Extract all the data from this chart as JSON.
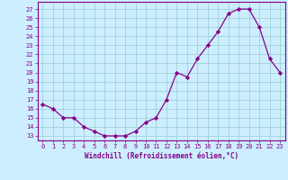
{
  "x": [
    0,
    1,
    2,
    3,
    4,
    5,
    6,
    7,
    8,
    9,
    10,
    11,
    12,
    13,
    14,
    15,
    16,
    17,
    18,
    19,
    20,
    21,
    22,
    23
  ],
  "y": [
    16.5,
    16.0,
    15.0,
    15.0,
    14.0,
    13.5,
    13.0,
    13.0,
    13.0,
    13.5,
    14.5,
    15.0,
    17.0,
    20.0,
    19.5,
    21.5,
    23.0,
    24.5,
    26.5,
    27.0,
    27.0,
    25.0,
    21.5,
    20.0
  ],
  "line_color": "#880088",
  "marker": "D",
  "marker_size": 2.2,
  "bg_color": "#cceeff",
  "grid_color": "#99cccc",
  "xlabel": "Windchill (Refroidissement éolien,°C)",
  "xlabel_color": "#880088",
  "ylabel_ticks": [
    13,
    14,
    15,
    16,
    17,
    18,
    19,
    20,
    21,
    22,
    23,
    24,
    25,
    26,
    27
  ],
  "ylim": [
    12.5,
    27.8
  ],
  "xlim": [
    -0.5,
    23.5
  ],
  "xtick_labels": [
    "0",
    "1",
    "2",
    "3",
    "4",
    "5",
    "6",
    "7",
    "8",
    "9",
    "10",
    "11",
    "12",
    "13",
    "14",
    "15",
    "16",
    "17",
    "18",
    "19",
    "20",
    "21",
    "22",
    "23"
  ],
  "tick_color": "#880088",
  "spine_color": "#880088",
  "tick_fontsize": 5.0,
  "xlabel_fontsize": 5.5,
  "linewidth": 0.9
}
